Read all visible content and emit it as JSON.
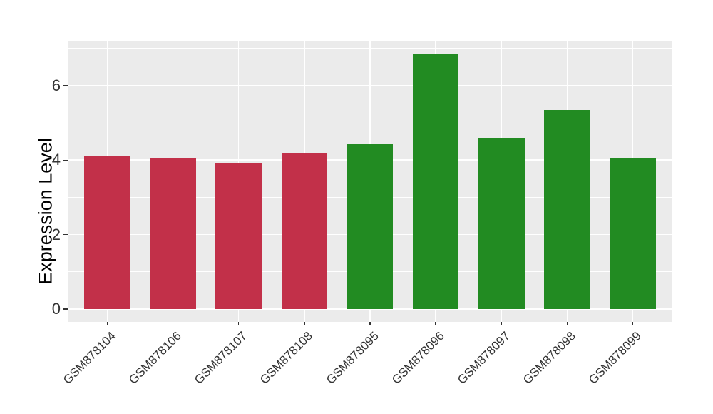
{
  "chart_data": {
    "type": "bar",
    "title": "",
    "xlabel": "",
    "ylabel": "Expression Level",
    "categories": [
      "GSM878104",
      "GSM878106",
      "GSM878107",
      "GSM878108",
      "GSM878095",
      "GSM878096",
      "GSM878097",
      "GSM878098",
      "GSM878099"
    ],
    "values": [
      4.1,
      4.06,
      3.93,
      4.18,
      4.43,
      6.87,
      4.61,
      5.35,
      4.06
    ],
    "bar_colors": [
      "#C23049",
      "#C23049",
      "#C23049",
      "#C23049",
      "#228B22",
      "#228B22",
      "#228B22",
      "#228B22",
      "#228B22"
    ],
    "group_colors": {
      "red_group": "#C23049",
      "green_group": "#228B22"
    },
    "yticks": [
      0,
      2,
      4,
      6
    ],
    "yticks_minor": [
      1,
      3,
      5,
      7
    ],
    "ylim": [
      -0.35,
      7.21
    ],
    "xtick_rotation_deg": 45,
    "legend": false,
    "grid": true,
    "panel_bg": "#EBEBEB",
    "grid_color": "#FFFFFF",
    "axis_text_color": "#333333"
  }
}
